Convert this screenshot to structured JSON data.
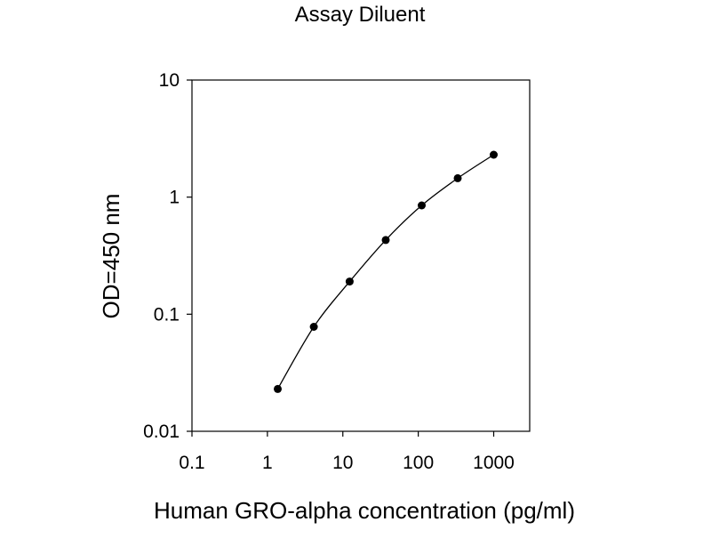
{
  "chart_data": {
    "type": "line",
    "title": "Assay Diluent",
    "xlabel": "Human GRO-alpha concentration (pg/ml)",
    "ylabel": "OD=450 nm",
    "x_scale": "log",
    "y_scale": "log",
    "xlim": [
      0.1,
      3000
    ],
    "ylim": [
      0.01,
      10
    ],
    "x_ticks": [
      0.1,
      1,
      10,
      100,
      1000
    ],
    "x_tick_labels": [
      "0.1",
      "1",
      "10",
      "100",
      "1000"
    ],
    "y_ticks": [
      0.01,
      0.1,
      1,
      10
    ],
    "y_tick_labels": [
      "0.01",
      "0.1",
      "1",
      "10"
    ],
    "grid": false,
    "legend": "none",
    "colors": {
      "line": "#000000",
      "marker": "#000000",
      "axis": "#000000",
      "background": "#ffffff"
    },
    "series": [
      {
        "x": [
          1.37,
          4.12,
          12.3,
          37.0,
          111,
          333,
          1000
        ],
        "y": [
          0.023,
          0.078,
          0.19,
          0.43,
          0.85,
          1.45,
          2.3
        ]
      }
    ]
  }
}
